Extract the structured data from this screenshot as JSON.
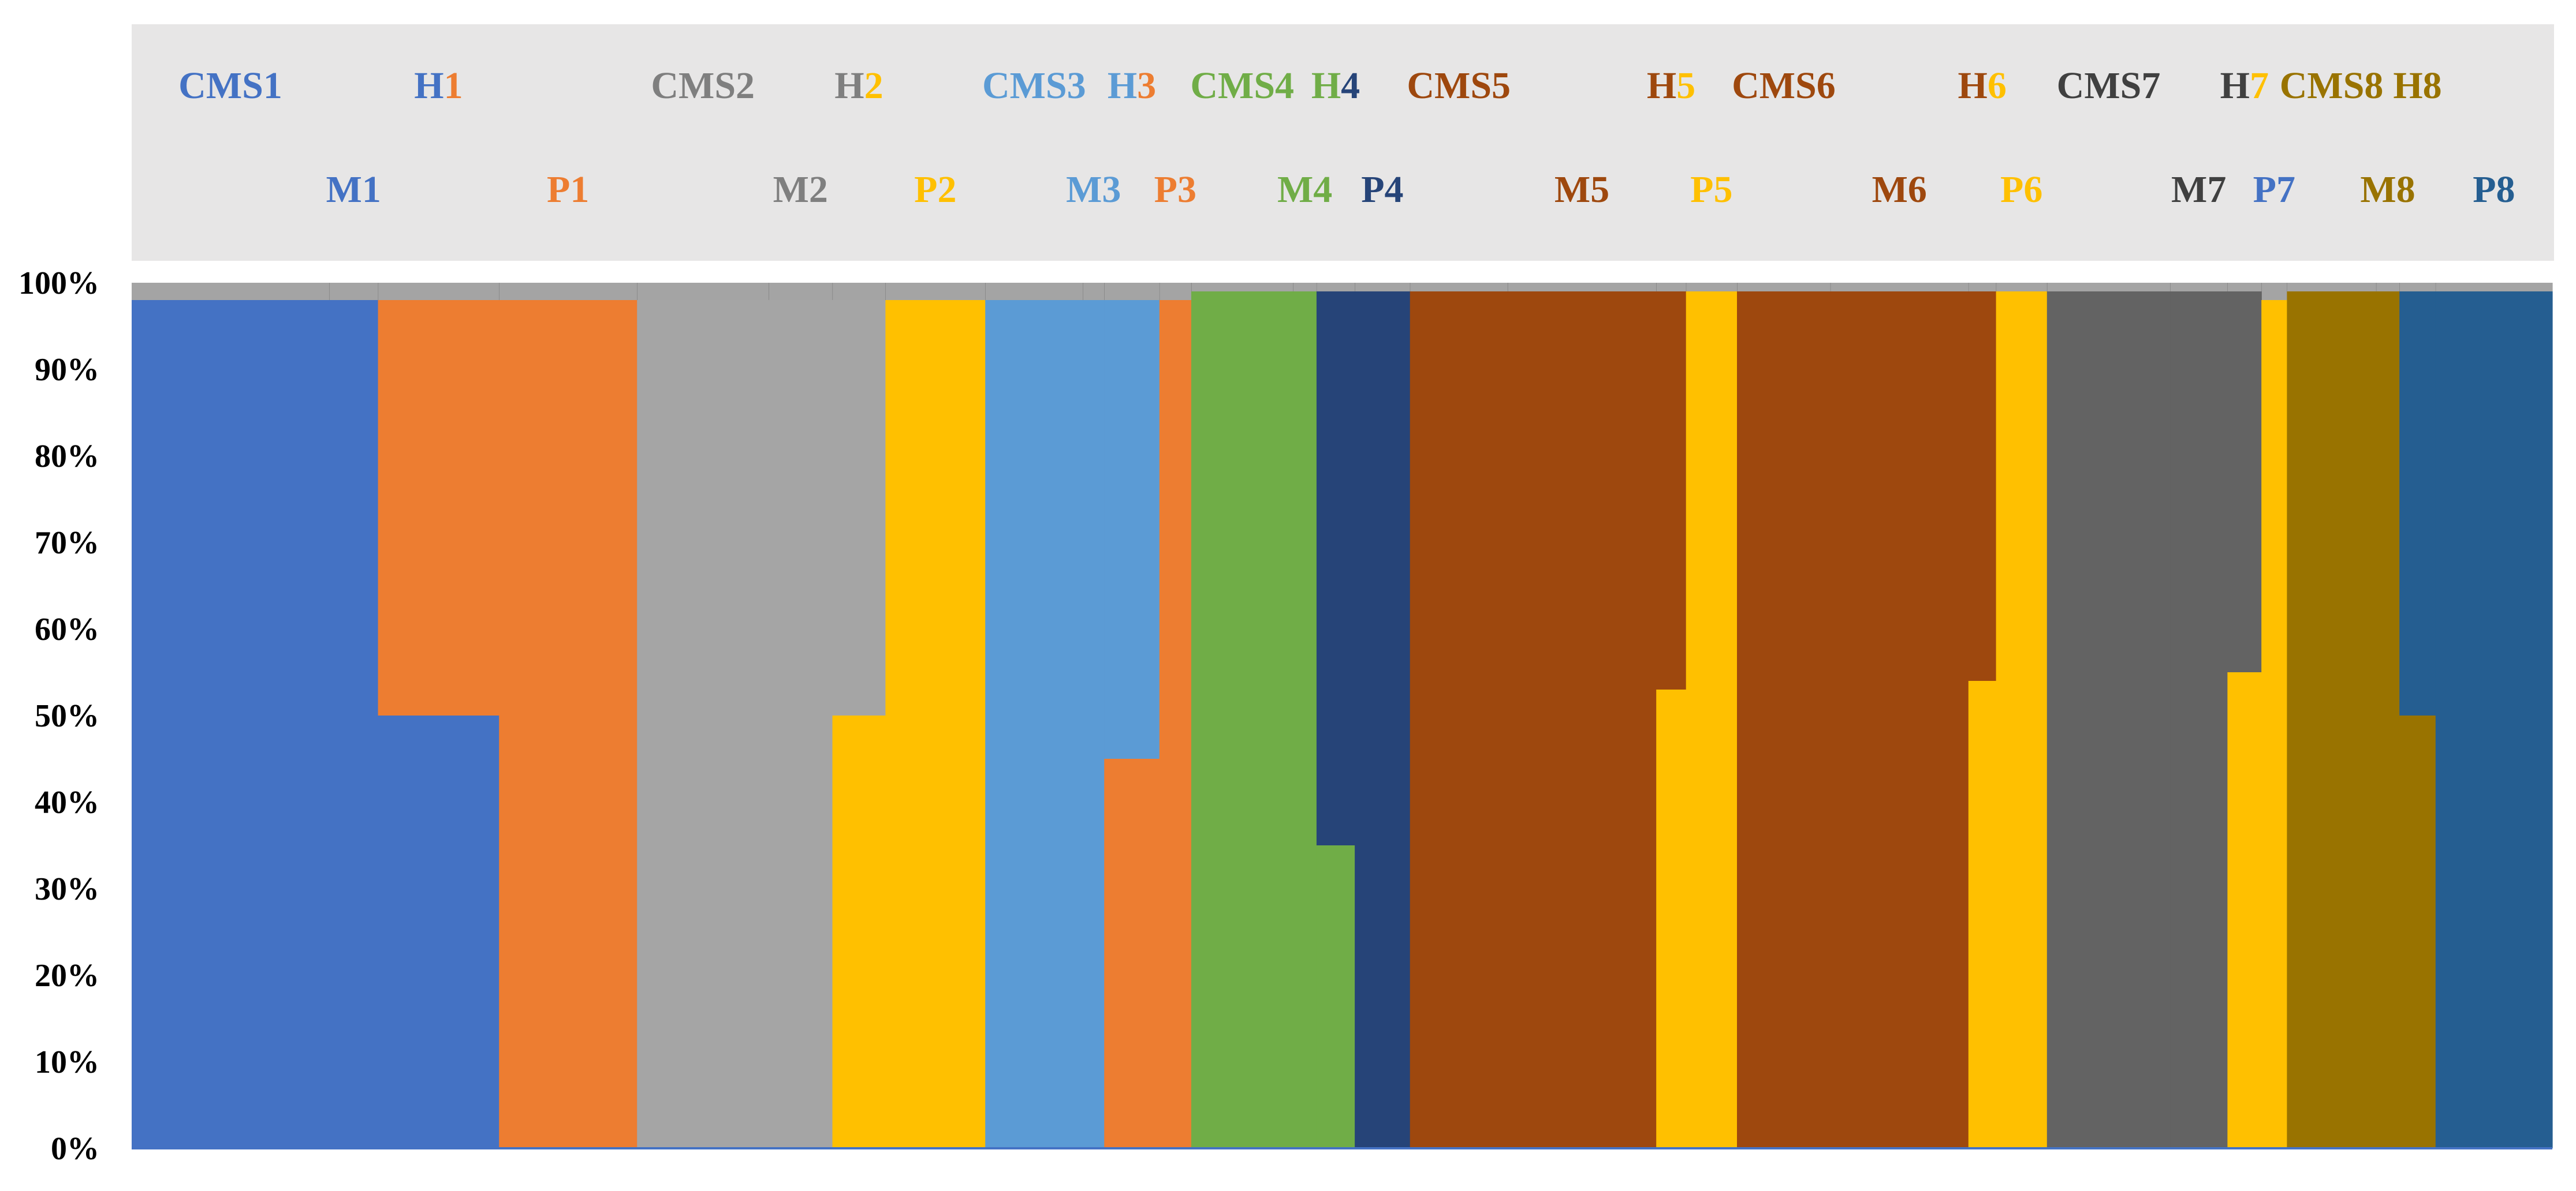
{
  "chart_data": {
    "type": "bar",
    "stacked": true,
    "ylim": [
      0,
      100
    ],
    "y_ticks": [
      "0%",
      "10%",
      "20%",
      "30%",
      "40%",
      "50%",
      "60%",
      "70%",
      "80%",
      "90%",
      "100%"
    ],
    "grid": false,
    "legend": "none",
    "groups": [
      {
        "label": "CMS1",
        "row": 1,
        "color": "#4472C4",
        "start": 0,
        "end": 0.093,
        "segments": [
          {
            "color": "#4472C4",
            "from": 0,
            "to": 98
          }
        ]
      },
      {
        "label": "M1",
        "row": 2,
        "color": "#4472C4",
        "start": 0.093,
        "end": 0.116,
        "segments": [
          {
            "color": "#4472C4",
            "from": 0,
            "to": 98
          }
        ]
      },
      {
        "label": "H",
        "suffix": "1",
        "row": 1,
        "color": "#4472C4",
        "suffix_color": "#ED7D31",
        "start": 0.116,
        "end": 0.173,
        "segments": [
          {
            "color": "#4472C4",
            "from": 0,
            "to": 50
          },
          {
            "color": "#ED7D31",
            "from": 50,
            "to": 98
          }
        ]
      },
      {
        "label": "P1",
        "row": 2,
        "color": "#ED7D31",
        "start": 0.173,
        "end": 0.238,
        "segments": [
          {
            "color": "#ED7D31",
            "from": 0,
            "to": 98
          }
        ]
      },
      {
        "label": "CMS2",
        "row": 1,
        "color": "#7F7F7F",
        "start": 0.238,
        "end": 0.3,
        "segments": [
          {
            "color": "#A5A5A5",
            "from": 0,
            "to": 98
          }
        ]
      },
      {
        "label": "M2",
        "row": 2,
        "color": "#7F7F7F",
        "start": 0.3,
        "end": 0.33,
        "segments": [
          {
            "color": "#A5A5A5",
            "from": 0,
            "to": 98
          }
        ]
      },
      {
        "label": "H",
        "suffix": "2",
        "row": 1,
        "color": "#7F7F7F",
        "suffix_color": "#FFC000",
        "start": 0.33,
        "end": 0.355,
        "segments": [
          {
            "color": "#FFC000",
            "from": 0,
            "to": 50
          },
          {
            "color": "#A5A5A5",
            "from": 50,
            "to": 98
          }
        ]
      },
      {
        "label": "P2",
        "row": 2,
        "color": "#FFC000",
        "start": 0.355,
        "end": 0.402,
        "segments": [
          {
            "color": "#FFC000",
            "from": 0,
            "to": 98
          }
        ]
      },
      {
        "label": "CMS3",
        "row": 1,
        "color": "#5B9BD5",
        "start": 0.402,
        "end": 0.448,
        "segments": [
          {
            "color": "#5B9BD5",
            "from": 0,
            "to": 98
          }
        ]
      },
      {
        "label": "M3",
        "row": 2,
        "color": "#5B9BD5",
        "start": 0.448,
        "end": 0.458,
        "segments": [
          {
            "color": "#5B9BD5",
            "from": 0,
            "to": 98
          }
        ]
      },
      {
        "label": "H",
        "suffix": "3",
        "row": 1,
        "color": "#5B9BD5",
        "suffix_color": "#ED7D31",
        "start": 0.458,
        "end": 0.484,
        "segments": [
          {
            "color": "#ED7D31",
            "from": 0,
            "to": 45
          },
          {
            "color": "#5B9BD5",
            "from": 45,
            "to": 98
          }
        ]
      },
      {
        "label": "P3",
        "row": 2,
        "color": "#ED7D31",
        "start": 0.484,
        "end": 0.499,
        "segments": [
          {
            "color": "#ED7D31",
            "from": 0,
            "to": 98
          }
        ]
      },
      {
        "label": "CMS4",
        "row": 1,
        "color": "#70AD47",
        "start": 0.499,
        "end": 0.547,
        "segments": [
          {
            "color": "#70AD47",
            "from": 0,
            "to": 99
          }
        ]
      },
      {
        "label": "M4",
        "row": 2,
        "color": "#70AD47",
        "start": 0.547,
        "end": 0.558,
        "segments": [
          {
            "color": "#70AD47",
            "from": 0,
            "to": 99
          }
        ]
      },
      {
        "label": "H",
        "suffix": "4",
        "row": 1,
        "color": "#70AD47",
        "suffix_color": "#264478",
        "start": 0.558,
        "end": 0.576,
        "segments": [
          {
            "color": "#70AD47",
            "from": 0,
            "to": 35
          },
          {
            "color": "#264478",
            "from": 35,
            "to": 99
          }
        ]
      },
      {
        "label": "P4",
        "row": 2,
        "color": "#264478",
        "start": 0.576,
        "end": 0.602,
        "segments": [
          {
            "color": "#264478",
            "from": 0,
            "to": 99
          }
        ]
      },
      {
        "label": "CMS5",
        "row": 1,
        "color": "#9E480E",
        "start": 0.602,
        "end": 0.648,
        "segments": [
          {
            "color": "#9E480E",
            "from": 0,
            "to": 99
          }
        ]
      },
      {
        "label": "M5",
        "row": 2,
        "color": "#9E480E",
        "start": 0.648,
        "end": 0.718,
        "segments": [
          {
            "color": "#9E480E",
            "from": 0,
            "to": 99
          }
        ]
      },
      {
        "label": "H",
        "suffix": "5",
        "row": 1,
        "color": "#9E480E",
        "suffix_color": "#FFC000",
        "start": 0.718,
        "end": 0.732,
        "segments": [
          {
            "color": "#FFC000",
            "from": 0,
            "to": 53
          },
          {
            "color": "#9E480E",
            "from": 53,
            "to": 99
          }
        ]
      },
      {
        "label": "P5",
        "row": 2,
        "color": "#FFC000",
        "start": 0.732,
        "end": 0.756,
        "segments": [
          {
            "color": "#FFC000",
            "from": 0,
            "to": 99
          }
        ]
      },
      {
        "label": "CMS6",
        "row": 1,
        "color": "#9E480E",
        "start": 0.756,
        "end": 0.8,
        "segments": [
          {
            "color": "#9E480E",
            "from": 0,
            "to": 99
          }
        ]
      },
      {
        "label": "M6",
        "row": 2,
        "color": "#9E480E",
        "start": 0.8,
        "end": 0.865,
        "segments": [
          {
            "color": "#9E480E",
            "from": 0,
            "to": 99
          }
        ]
      },
      {
        "label": "H",
        "suffix": "6",
        "row": 1,
        "color": "#9E480E",
        "suffix_color": "#FFC000",
        "start": 0.865,
        "end": 0.878,
        "segments": [
          {
            "color": "#FFC000",
            "from": 0,
            "to": 54
          },
          {
            "color": "#9E480E",
            "from": 54,
            "to": 99
          }
        ]
      },
      {
        "label": "P6",
        "row": 2,
        "color": "#FFC000",
        "start": 0.878,
        "end": 0.902,
        "segments": [
          {
            "color": "#FFC000",
            "from": 0,
            "to": 99
          }
        ]
      },
      {
        "label": "CMS7",
        "row": 1,
        "color": "#404040",
        "start": 0.902,
        "end": 0.96,
        "segments": [
          {
            "color": "#636363",
            "from": 0,
            "to": 99
          }
        ]
      },
      {
        "label": "M7",
        "row": 2,
        "color": "#404040",
        "start": 0.96,
        "end": 0.987,
        "segments": [
          {
            "color": "#636363",
            "from": 0,
            "to": 99
          }
        ]
      },
      {
        "label": "H",
        "suffix": "7",
        "row": 1,
        "color": "#404040",
        "suffix_color": "#FFC000",
        "start": 0.987,
        "end": 1.003,
        "segments": [
          {
            "color": "#FFC000",
            "from": 0,
            "to": 55
          },
          {
            "color": "#636363",
            "from": 55,
            "to": 99
          }
        ]
      },
      {
        "label": "P7",
        "row": 2,
        "color": "#4472C4",
        "suffix_color": "#FFC000",
        "start": 1.003,
        "end": 1.015,
        "segments": [
          {
            "color": "#FFC000",
            "from": 0,
            "to": 98
          }
        ]
      },
      {
        "label": "CMS8",
        "row": 1,
        "color": "#997300",
        "start": 1.015,
        "end": 1.057,
        "segments": [
          {
            "color": "#997300",
            "from": 0,
            "to": 99
          }
        ]
      },
      {
        "label": "M8",
        "row": 2,
        "color": "#997300",
        "start": 1.057,
        "end": 1.068,
        "segments": [
          {
            "color": "#997300",
            "from": 0,
            "to": 99
          }
        ]
      },
      {
        "label": "H8",
        "row": 1,
        "color": "#997300",
        "start": 1.068,
        "end": 1.085,
        "segments": [
          {
            "color": "#997300",
            "from": 0,
            "to": 50
          },
          {
            "color": "#255E91",
            "from": 50,
            "to": 99
          }
        ]
      },
      {
        "label": "P8",
        "row": 2,
        "color": "#255E91",
        "start": 1.085,
        "end": 1.14,
        "segments": [
          {
            "color": "#255E91",
            "from": 0,
            "to": 99
          }
        ]
      }
    ],
    "x_extent": [
      0,
      1.14
    ]
  }
}
